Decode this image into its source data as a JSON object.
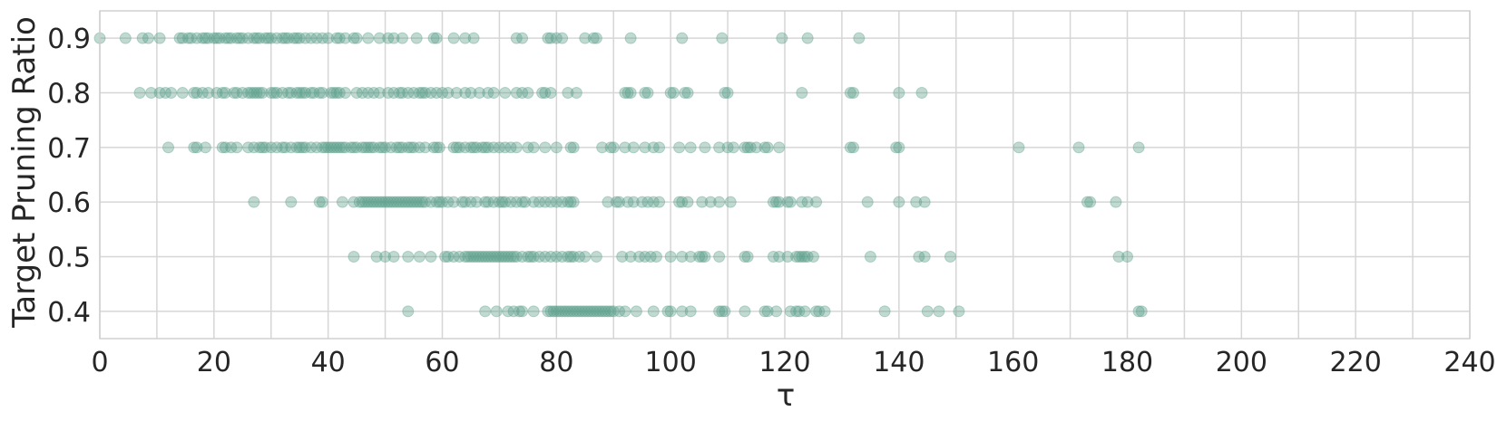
{
  "chart_data": {
    "type": "scatter",
    "xlabel": "τ",
    "ylabel": "Target Pruning Ratio",
    "xlim": [
      0,
      240
    ],
    "ylim": [
      0.35,
      0.95
    ],
    "x_ticks": [
      "0",
      "20",
      "40",
      "60",
      "80",
      "100",
      "120",
      "140",
      "160",
      "180",
      "200",
      "220",
      "240"
    ],
    "y_ticks": [
      "0.4",
      "0.5",
      "0.6",
      "0.7",
      "0.8",
      "0.9"
    ],
    "grid": true,
    "marker_color": "#5a9e8a",
    "marker_opacity": 0.38,
    "series": [
      {
        "y": 0.9,
        "x": [
          0,
          4.5,
          7.5,
          8.5,
          10.5,
          14,
          14.5,
          15.5,
          16,
          17,
          18,
          18.5,
          19,
          20,
          20.5,
          21,
          22,
          22.5,
          23,
          24,
          24.5,
          25,
          26,
          27,
          27.5,
          28,
          29,
          29.5,
          30,
          31,
          32,
          32.5,
          33,
          34,
          34.5,
          35,
          36,
          37,
          38,
          39,
          40,
          41.5,
          42,
          43,
          44.5,
          45,
          47,
          49,
          50.5,
          51.5,
          53,
          55.5,
          58.5,
          59,
          62,
          64,
          65.5,
          73,
          74,
          78.5,
          79,
          80,
          81,
          85,
          86.5,
          87,
          93,
          102,
          109,
          119.5,
          124,
          133
        ]
      },
      {
        "y": 0.8,
        "x": [
          7,
          9,
          10.5,
          11.5,
          12.5,
          14.5,
          16.5,
          17,
          18,
          19,
          20.5,
          21.5,
          22,
          23.5,
          24,
          25,
          26,
          26.5,
          27,
          27.5,
          28,
          28.5,
          30,
          30.5,
          31,
          32,
          33,
          33.5,
          34.5,
          35,
          35.5,
          36,
          37,
          37.5,
          38.5,
          39,
          40.5,
          41,
          41.5,
          42,
          43,
          45,
          46,
          47,
          48,
          49,
          50.5,
          51.5,
          52.5,
          53,
          54,
          55,
          56,
          56.5,
          57,
          58,
          59,
          60,
          61,
          62.5,
          64,
          65,
          66.5,
          68,
          69,
          71,
          73,
          74,
          75,
          77.5,
          78,
          79,
          82,
          83.5,
          92,
          92.5,
          93,
          95.5,
          96,
          100,
          100.5,
          102.5,
          103,
          109.5,
          110,
          123,
          131.5,
          132,
          140,
          144
        ]
      },
      {
        "y": 0.7,
        "x": [
          12,
          16.5,
          17,
          18.5,
          21.5,
          22,
          23,
          24,
          26,
          27,
          28,
          28.5,
          29,
          30,
          31,
          32,
          32.5,
          33.5,
          34.5,
          35,
          35.5,
          36,
          37,
          38,
          39,
          39.5,
          40,
          40.5,
          41,
          41.5,
          42,
          42.5,
          43,
          44,
          44.5,
          45,
          46,
          46.5,
          47,
          47.5,
          48,
          49,
          49.5,
          50,
          51,
          52,
          52.5,
          53,
          54,
          54.5,
          55,
          56,
          57,
          58.5,
          59,
          59.5,
          62,
          62.5,
          63,
          64,
          65,
          65.5,
          66,
          67,
          67.5,
          68,
          69,
          70,
          71,
          72,
          73,
          75,
          76,
          78,
          80,
          82.5,
          83,
          88,
          89.5,
          90,
          92,
          93.5,
          95.5,
          97,
          98,
          101.5,
          103.5,
          106,
          108.5,
          110,
          111,
          113,
          113.5,
          114,
          115,
          116.5,
          117,
          119,
          131.5,
          132,
          139.5,
          140,
          161,
          171.5,
          182
        ]
      },
      {
        "y": 0.6,
        "x": [
          27,
          33.5,
          38.5,
          39,
          42.5,
          44.5,
          45.5,
          46,
          46.5,
          47,
          47.5,
          48,
          48.5,
          49,
          49.5,
          50,
          50.5,
          51,
          51.5,
          52,
          52.5,
          53,
          53.5,
          54,
          54.5,
          55,
          55.5,
          56,
          56.5,
          57,
          58,
          59,
          59.5,
          60,
          61,
          62,
          63.5,
          64,
          65,
          66,
          67.5,
          68,
          69,
          70,
          70.5,
          71,
          72,
          73,
          74,
          74.5,
          76,
          77,
          78,
          79,
          80,
          81,
          82,
          82.5,
          83,
          89,
          90.5,
          91,
          92.5,
          93.5,
          95,
          96,
          97,
          98,
          101.5,
          102,
          103,
          105.5,
          107,
          108.5,
          110.5,
          118,
          118.5,
          119,
          120.5,
          121,
          123,
          124,
          125.5,
          134.5,
          140,
          143,
          144.5,
          173,
          173.5,
          178
        ]
      },
      {
        "y": 0.5,
        "x": [
          44.5,
          48.5,
          50,
          51.5,
          54,
          56,
          58,
          60.5,
          61,
          62,
          63,
          64,
          64.5,
          65,
          65.5,
          66,
          66.5,
          67,
          67.5,
          68,
          68.5,
          69,
          69.5,
          70,
          70.5,
          71,
          71.5,
          72,
          72.5,
          73,
          74,
          75,
          75.5,
          76,
          77,
          78,
          79,
          80,
          81,
          82,
          82.5,
          83,
          84,
          85,
          87,
          91.5,
          93,
          94.5,
          95.5,
          96.5,
          97.5,
          100,
          102,
          103.5,
          105,
          105.5,
          106,
          108.5,
          113,
          113.5,
          118,
          119,
          120.5,
          122,
          122.5,
          123,
          123.5,
          124,
          125,
          135,
          143.5,
          144.5,
          149,
          178.5,
          180
        ]
      },
      {
        "y": 0.4,
        "x": [
          54,
          67.5,
          69.5,
          71.5,
          72.5,
          73.5,
          74,
          76,
          78.5,
          79,
          79.5,
          80,
          80.5,
          81,
          81.5,
          82,
          82.5,
          83,
          83.5,
          84,
          84.5,
          85,
          85.5,
          86,
          86.5,
          87,
          87.5,
          88,
          88.5,
          89,
          89.5,
          90,
          91,
          92,
          94,
          97,
          99.5,
          100,
          102,
          103.5,
          108.5,
          109,
          109.5,
          113,
          116.5,
          117,
          118.5,
          121,
          122,
          122.5,
          123.5,
          125.5,
          126,
          127,
          137.5,
          145,
          147,
          150.5,
          182,
          182.5
        ]
      }
    ]
  }
}
